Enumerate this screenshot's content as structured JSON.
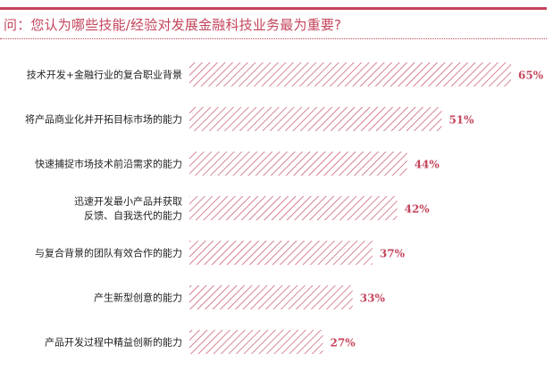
{
  "title": "问：您认为哪些技能/经验对发展金融科技业务最为重要?",
  "colors": {
    "accent": "#c4455c",
    "bar_hatch": "#c4455c",
    "label": "#222222"
  },
  "chart_data": {
    "type": "bar",
    "orientation": "horizontal",
    "title": "问：您认为哪些技能/经验对发展金融科技业务最为重要?",
    "categories": [
      [
        "技术开发+金融行业的复合职业背景"
      ],
      [
        "将产品商业化并开拓目标市场的能力"
      ],
      [
        "快速捕捉市场技术前沿需求的能力"
      ],
      [
        "迅速开发最小产品并获取",
        "反馈、自我迭代的能力"
      ],
      [
        "与复合背景的团队有效合作的能力"
      ],
      [
        "产生新型创意的能力"
      ],
      [
        "产品开发过程中精益创新的能力"
      ]
    ],
    "values": [
      65,
      51,
      44,
      42,
      37,
      33,
      27
    ],
    "value_labels": [
      "65%",
      "51%",
      "44%",
      "42%",
      "37%",
      "33%",
      "27%"
    ],
    "xlim": [
      0,
      65
    ],
    "grid": false,
    "legend": "none"
  }
}
